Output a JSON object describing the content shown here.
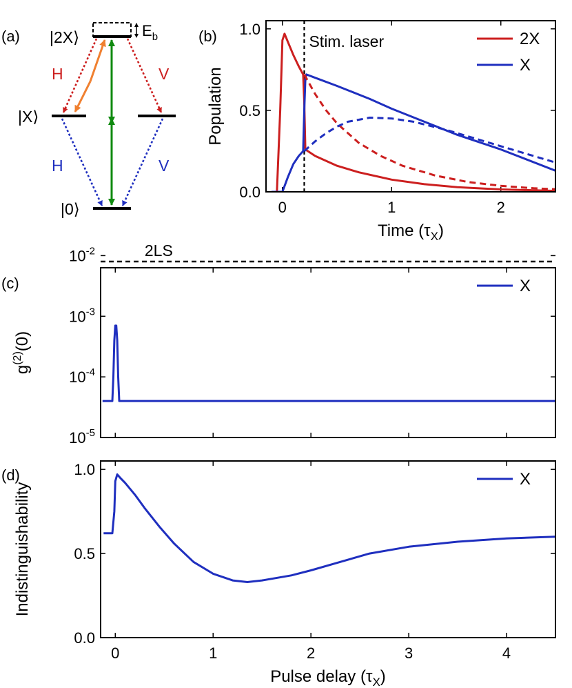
{
  "panel_labels": {
    "a": "(a)",
    "b": "(b)",
    "c": "(c)",
    "d": "(d)"
  },
  "colors": {
    "red": "#cc1f1f",
    "blue": "#1f2fbf",
    "green": "#0f8a0f",
    "orange": "#f08030",
    "black": "#000000"
  },
  "diagram": {
    "levels": {
      "biexciton": "|2X⟩",
      "exciton": "|X⟩",
      "ground": "|0⟩"
    },
    "binding_energy": {
      "base": "E",
      "sub": "b"
    },
    "polarizations": {
      "top_left": "H",
      "top_right": "V",
      "bottom_left": "H",
      "bottom_right": "V"
    }
  },
  "chart_data": [
    {
      "id": "b",
      "type": "line",
      "xlabel": {
        "base": "Time (",
        "sym": "τ",
        "sub": "X",
        "close": ")"
      },
      "ylabel": "Population",
      "xlim": [
        -0.15,
        2.5
      ],
      "ylim": [
        0,
        1.05
      ],
      "xticks": [
        0,
        1,
        2
      ],
      "xticklabels": [
        "0",
        "1",
        "2"
      ],
      "yticks": [
        0,
        0.5,
        1.0
      ],
      "yticklabels": [
        "0.0",
        "0.5",
        "1.0"
      ],
      "annotation": "Stim. laser",
      "vline_x": 0.2,
      "legend": {
        "placement": "top-right",
        "entries": [
          "2X",
          "X"
        ]
      },
      "series": [
        {
          "name": "2X",
          "color": "red",
          "dash": false,
          "x": [
            -0.1,
            -0.05,
            -0.02,
            0.0,
            0.02,
            0.05,
            0.1,
            0.15,
            0.19,
            0.2,
            0.21,
            0.3,
            0.5,
            0.7,
            1.0,
            1.3,
            1.6,
            2.0,
            2.5
          ],
          "y": [
            0.0,
            0.0,
            0.5,
            0.93,
            0.97,
            0.92,
            0.84,
            0.77,
            0.72,
            0.55,
            0.26,
            0.22,
            0.16,
            0.12,
            0.075,
            0.047,
            0.029,
            0.015,
            0.006
          ]
        },
        {
          "name": "X",
          "color": "blue",
          "dash": false,
          "x": [
            -0.1,
            0.0,
            0.05,
            0.1,
            0.15,
            0.19,
            0.2,
            0.21,
            0.22,
            0.3,
            0.5,
            0.8,
            1.0,
            1.3,
            1.6,
            2.0,
            2.5
          ],
          "y": [
            0.0,
            0.0,
            0.09,
            0.17,
            0.22,
            0.25,
            0.5,
            0.69,
            0.72,
            0.7,
            0.65,
            0.57,
            0.51,
            0.43,
            0.35,
            0.26,
            0.13
          ]
        },
        {
          "color": "red",
          "dash": true,
          "x": [
            0.2,
            0.3,
            0.4,
            0.5,
            0.7,
            0.9,
            1.1,
            1.4,
            1.7,
            2.0,
            2.3,
            2.5
          ],
          "y": [
            0.72,
            0.6,
            0.5,
            0.42,
            0.3,
            0.22,
            0.16,
            0.1,
            0.06,
            0.037,
            0.022,
            0.016
          ]
        },
        {
          "color": "blue",
          "dash": true,
          "x": [
            0.2,
            0.3,
            0.4,
            0.5,
            0.6,
            0.8,
            1.0,
            1.2,
            1.5,
            1.8,
            2.1,
            2.5
          ],
          "y": [
            0.25,
            0.31,
            0.36,
            0.4,
            0.43,
            0.455,
            0.45,
            0.43,
            0.38,
            0.32,
            0.26,
            0.18
          ]
        }
      ]
    },
    {
      "id": "c",
      "type": "line",
      "ylabel": {
        "base": "g",
        "sup": "(2)",
        "rest": "(0)"
      },
      "xlim": [
        -0.15,
        4.5
      ],
      "ylim_log10": [
        -5,
        -2.2
      ],
      "yscale": "log",
      "xticks": [
        0,
        1,
        2,
        3,
        4
      ],
      "yticks": [
        -5,
        -4,
        -3,
        -2
      ],
      "yticklabels": [
        {
          "base": "10",
          "exp": "-5"
        },
        {
          "base": "10",
          "exp": "-4"
        },
        {
          "base": "10",
          "exp": "-3"
        },
        {
          "base": "10",
          "exp": "-2"
        }
      ],
      "reference_line": {
        "label": "2LS",
        "y": 0.008
      },
      "legend": {
        "placement": "top-right",
        "entries": [
          "X"
        ]
      },
      "series": [
        {
          "name": "X",
          "color": "blue",
          "dash": false,
          "x": [
            -0.13,
            -0.04,
            -0.03,
            -0.02,
            -0.01,
            0.0,
            0.01,
            0.02,
            0.03,
            0.04,
            0.05,
            0.07,
            4.5
          ],
          "y": [
            4e-05,
            4e-05,
            4e-05,
            0.0001,
            0.0004,
            0.0007,
            0.0007,
            0.0004,
            0.0001,
            4e-05,
            4e-05,
            4e-05,
            4e-05
          ]
        }
      ]
    },
    {
      "id": "d",
      "type": "line",
      "xlabel": {
        "base": "Pulse delay (",
        "sym": "τ",
        "sub": "X",
        "close": ")"
      },
      "ylabel": "Indistinguishability",
      "xlim": [
        -0.15,
        4.5
      ],
      "ylim": [
        0,
        1.05
      ],
      "xticks": [
        0,
        1,
        2,
        3,
        4
      ],
      "xticklabels": [
        "0",
        "1",
        "2",
        "3",
        "4"
      ],
      "yticks": [
        0,
        0.5,
        1.0
      ],
      "yticklabels": [
        "0.0",
        "0.5",
        "1.0"
      ],
      "legend": {
        "placement": "top-right",
        "entries": [
          "X"
        ]
      },
      "series": [
        {
          "name": "X",
          "color": "blue",
          "dash": false,
          "x": [
            -0.12,
            -0.03,
            -0.01,
            0.0,
            0.02,
            0.05,
            0.1,
            0.2,
            0.3,
            0.45,
            0.6,
            0.8,
            1.0,
            1.2,
            1.35,
            1.5,
            1.8,
            2.0,
            2.3,
            2.6,
            3.0,
            3.5,
            4.0,
            4.5
          ],
          "y": [
            0.62,
            0.62,
            0.75,
            0.93,
            0.97,
            0.95,
            0.92,
            0.85,
            0.77,
            0.66,
            0.56,
            0.45,
            0.38,
            0.34,
            0.33,
            0.34,
            0.37,
            0.4,
            0.45,
            0.5,
            0.54,
            0.57,
            0.59,
            0.6
          ]
        }
      ]
    }
  ]
}
